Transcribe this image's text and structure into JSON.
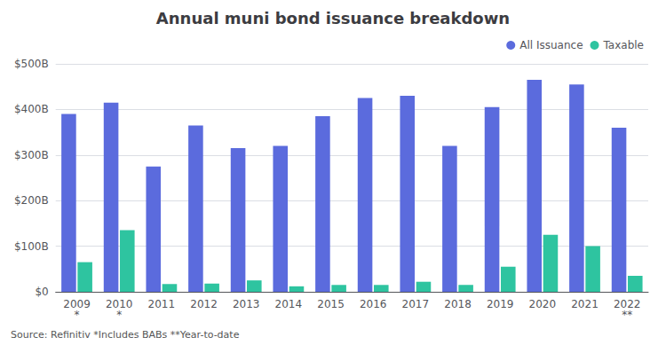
{
  "chart_data": {
    "type": "bar",
    "title": "Annual muni bond issuance breakdown",
    "categories": [
      "2009\n*",
      "2010\n*",
      "2011",
      "2012",
      "2013",
      "2014",
      "2015",
      "2016",
      "2017",
      "2018",
      "2019",
      "2020",
      "2021",
      "2022\n**"
    ],
    "series": [
      {
        "name": "All Issuance",
        "color": "#5b6bdd",
        "values": [
          390,
          415,
          275,
          365,
          315,
          320,
          385,
          425,
          430,
          320,
          405,
          465,
          455,
          360
        ]
      },
      {
        "name": "Taxable",
        "color": "#2ec4a0",
        "values": [
          65,
          135,
          17,
          18,
          25,
          12,
          15,
          15,
          22,
          15,
          55,
          125,
          100,
          35
        ]
      }
    ],
    "ylim": [
      0,
      500
    ],
    "yticks": [
      {
        "value": 0,
        "label": "$0"
      },
      {
        "value": 100,
        "label": "$100B"
      },
      {
        "value": 200,
        "label": "$200B"
      },
      {
        "value": 300,
        "label": "$300B"
      },
      {
        "value": 400,
        "label": "$400B"
      },
      {
        "value": 500,
        "label": "$500B"
      }
    ],
    "grid": true,
    "legend": "upper right",
    "annotations": [
      "Source: Refinitiv *Includes BABs **Year-to-date"
    ]
  }
}
